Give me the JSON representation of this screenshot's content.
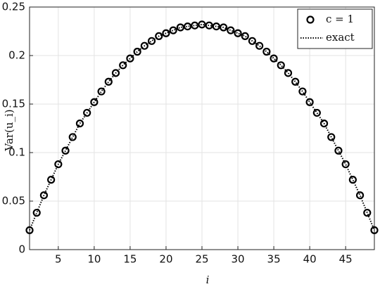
{
  "chart_data": {
    "type": "line",
    "xlabel": "i",
    "ylabel": "Var(u_i)",
    "x": [
      1,
      2,
      3,
      4,
      5,
      6,
      7,
      8,
      9,
      10,
      11,
      12,
      13,
      14,
      15,
      16,
      17,
      18,
      19,
      20,
      21,
      22,
      23,
      24,
      25,
      26,
      27,
      28,
      29,
      30,
      31,
      32,
      33,
      34,
      35,
      36,
      37,
      38,
      39,
      40,
      41,
      42,
      43,
      44,
      45,
      46,
      47,
      48,
      49
    ],
    "series": [
      {
        "name": "c = 1",
        "color": "#000000",
        "style": "markers",
        "values": [
          0.02,
          0.038,
          0.056,
          0.072,
          0.088,
          0.102,
          0.116,
          0.13,
          0.141,
          0.152,
          0.163,
          0.173,
          0.182,
          0.19,
          0.197,
          0.204,
          0.21,
          0.215,
          0.22,
          0.223,
          0.226,
          0.229,
          0.23,
          0.231,
          0.232,
          0.231,
          0.23,
          0.229,
          0.226,
          0.223,
          0.22,
          0.215,
          0.21,
          0.204,
          0.197,
          0.19,
          0.182,
          0.173,
          0.163,
          0.152,
          0.141,
          0.13,
          0.116,
          0.102,
          0.088,
          0.072,
          0.056,
          0.038,
          0.02
        ]
      },
      {
        "name": "exact",
        "color": "#000000",
        "style": "dotted",
        "values": [
          0.02,
          0.038,
          0.056,
          0.072,
          0.088,
          0.102,
          0.116,
          0.13,
          0.141,
          0.152,
          0.163,
          0.173,
          0.182,
          0.19,
          0.197,
          0.204,
          0.21,
          0.215,
          0.22,
          0.223,
          0.226,
          0.229,
          0.23,
          0.231,
          0.232,
          0.231,
          0.23,
          0.229,
          0.226,
          0.223,
          0.22,
          0.215,
          0.21,
          0.204,
          0.197,
          0.19,
          0.182,
          0.173,
          0.163,
          0.152,
          0.141,
          0.13,
          0.116,
          0.102,
          0.088,
          0.072,
          0.056,
          0.038,
          0.02
        ]
      }
    ],
    "xlim": [
      1,
      49
    ],
    "xticks": [
      5,
      10,
      15,
      20,
      25,
      30,
      35,
      40,
      45
    ],
    "ylim": [
      0,
      0.25
    ],
    "yticks": [
      0,
      0.05,
      0.1,
      0.15,
      0.2,
      0.25
    ],
    "grid": true,
    "legend": "top-right"
  }
}
